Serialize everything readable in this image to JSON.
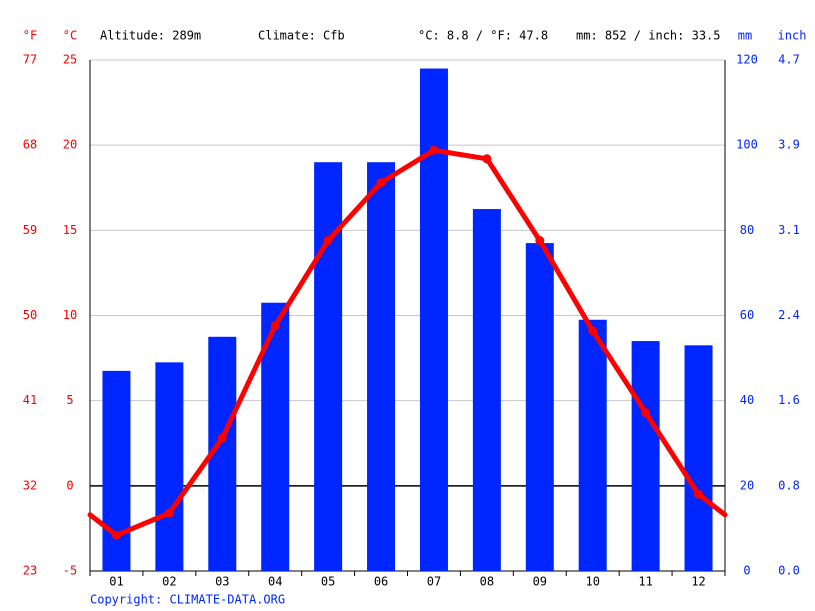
{
  "chart_data": {
    "type": "climate",
    "categories": [
      "01",
      "02",
      "03",
      "04",
      "05",
      "06",
      "07",
      "08",
      "09",
      "10",
      "11",
      "12"
    ],
    "series": [
      {
        "type": "bar",
        "axis": "y2",
        "color": "#0026ff",
        "values": [
          47,
          49,
          55,
          63,
          96,
          96,
          118,
          85,
          77,
          59,
          54,
          53
        ]
      },
      {
        "type": "line",
        "color": "#ff0000",
        "values": [
          -2.9,
          -1.6,
          2.8,
          9.4,
          14.4,
          17.8,
          19.7,
          19.2,
          14.4,
          9.1,
          4.3,
          -0.5
        ]
      }
    ],
    "ylim": [
      -5,
      25
    ],
    "yticks": [
      -5,
      0,
      5,
      10,
      15,
      20,
      25
    ],
    "y2lim": [
      0,
      120
    ],
    "y2ticks": [
      0,
      20,
      40,
      60,
      80,
      100,
      120
    ],
    "fticks": [
      {
        "value": -5,
        "label": "23"
      },
      {
        "value": 0,
        "label": "32"
      },
      {
        "value": 5,
        "label": "41"
      },
      {
        "value": 10,
        "label": "50"
      },
      {
        "value": 15,
        "label": "59"
      },
      {
        "value": 20,
        "label": "68"
      },
      {
        "value": 25,
        "label": "77"
      }
    ],
    "inchticks": [
      {
        "value": 0,
        "label": "0.0"
      },
      {
        "value": 20,
        "label": "0.8"
      },
      {
        "value": 40,
        "label": "1.6"
      },
      {
        "value": 60,
        "label": "2.4"
      },
      {
        "value": 80,
        "label": "3.1"
      },
      {
        "value": 100,
        "label": "3.9"
      },
      {
        "value": 120,
        "label": "4.7"
      }
    ],
    "axis_titles": [
      "°F",
      "°C",
      "mm",
      "inch"
    ],
    "annotations": [
      "Altitude: 289m",
      "Climate: Cfb",
      "°C: 8.8 / °F: 47.8",
      "mm: 852 / inch: 33.5"
    ],
    "footer": "Copyright: CLIMATE-DATA.ORG",
    "grid": true
  }
}
